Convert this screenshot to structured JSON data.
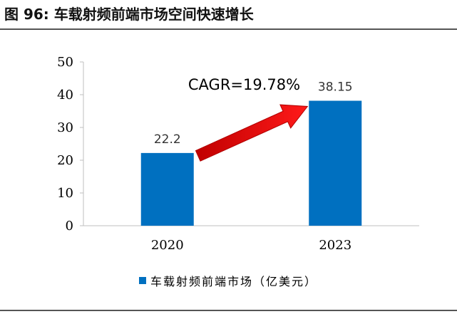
{
  "figure": {
    "title": "图 96:  车载射频前端市场空间快速增长"
  },
  "chart_data": {
    "type": "bar",
    "categories": [
      "2020",
      "2023"
    ],
    "series": [
      {
        "name": "车载射频前端市场（亿美元）",
        "values": [
          22.2,
          38.15
        ]
      }
    ],
    "data_labels": [
      "22.2",
      "38.15"
    ],
    "ylim": [
      0,
      50
    ],
    "yticks": [
      0,
      10,
      20,
      30,
      40,
      50
    ],
    "grid": false,
    "legend_position": "bottom",
    "annotation": "CAGR=19.78%",
    "colors": {
      "bar": "#0070c0",
      "arrow": "#ff0000"
    }
  }
}
